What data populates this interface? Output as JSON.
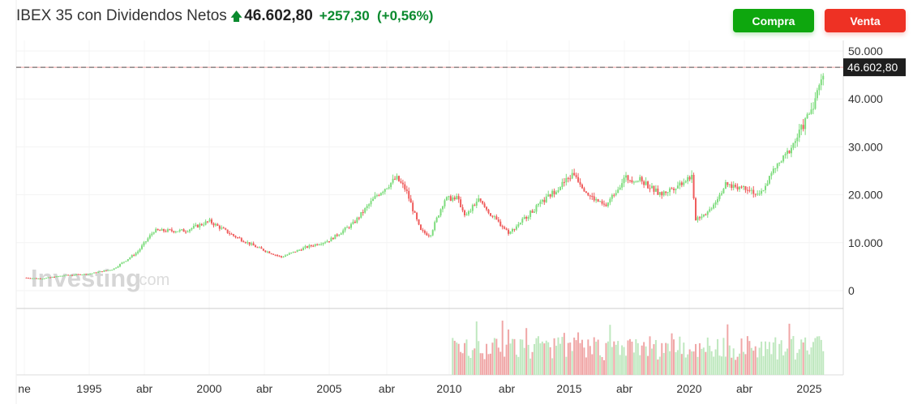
{
  "header": {
    "name": "IBEX 35 con Dividendos Netos",
    "arrow_icon": "up-arrow-icon",
    "price": "46.602,80",
    "change": "+257,30",
    "change_pct": "(+0,56%)"
  },
  "buttons": {
    "buy": "Compra",
    "sell": "Venta"
  },
  "colors": {
    "up": "#7ddc7d",
    "down": "#ef5b5b",
    "buy": "#0ea70e",
    "sell": "#ee3124"
  },
  "watermark": {
    "brand": "Investing",
    "suffix": ".com"
  },
  "chart_data": {
    "type": "candlestick",
    "title": "IBEX 35 con Dividendos Netos",
    "last_price_label": "46.602,80",
    "last_price": 46602.8,
    "ylim": [
      0,
      50000
    ],
    "y_ticks": [
      {
        "v": 0,
        "label": "0"
      },
      {
        "v": 10000,
        "label": "10.000"
      },
      {
        "v": 20000,
        "label": "20.000"
      },
      {
        "v": 30000,
        "label": "30.000"
      },
      {
        "v": 40000,
        "label": "40.000"
      },
      {
        "v": 50000,
        "label": "50.000"
      }
    ],
    "x_ticks": [
      {
        "t": 1992.3,
        "label": "ne"
      },
      {
        "t": 1995,
        "label": "1995"
      },
      {
        "t": 1997.3,
        "label": "abr"
      },
      {
        "t": 2000,
        "label": "2000"
      },
      {
        "t": 2002.3,
        "label": "abr"
      },
      {
        "t": 2005,
        "label": "2005"
      },
      {
        "t": 2007.4,
        "label": "abr"
      },
      {
        "t": 2010,
        "label": "2010"
      },
      {
        "t": 2012.4,
        "label": "abr"
      },
      {
        "t": 2015,
        "label": "2015"
      },
      {
        "t": 2017.3,
        "label": "abr"
      },
      {
        "t": 2020,
        "label": "2020"
      },
      {
        "t": 2022.3,
        "label": "abr"
      },
      {
        "t": 2025,
        "label": "2025"
      }
    ],
    "anchors": [
      [
        1992.3,
        2700
      ],
      [
        1993,
        2500
      ],
      [
        1994,
        3200
      ],
      [
        1995,
        3500
      ],
      [
        1996,
        4500
      ],
      [
        1997,
        8000
      ],
      [
        1997.7,
        12500
      ],
      [
        1999,
        12500
      ],
      [
        2000,
        14500
      ],
      [
        2001,
        11500
      ],
      [
        2002,
        9000
      ],
      [
        2003,
        7000
      ],
      [
        2004,
        9000
      ],
      [
        2005,
        10500
      ],
      [
        2006,
        14000
      ],
      [
        2007,
        20000
      ],
      [
        2007.8,
        23500
      ],
      [
        2008.2,
        21000
      ],
      [
        2008.8,
        12500
      ],
      [
        2009.2,
        11500
      ],
      [
        2009.8,
        19000
      ],
      [
        2010.3,
        19500
      ],
      [
        2010.7,
        15500
      ],
      [
        2011.2,
        19000
      ],
      [
        2011.8,
        15500
      ],
      [
        2012.5,
        12000
      ],
      [
        2013,
        14500
      ],
      [
        2014,
        19000
      ],
      [
        2015.2,
        24500
      ],
      [
        2015.8,
        20000
      ],
      [
        2016.5,
        17500
      ],
      [
        2017.3,
        23500
      ],
      [
        2018,
        23000
      ],
      [
        2018.8,
        20000
      ],
      [
        2019.5,
        22000
      ],
      [
        2020.1,
        24000
      ],
      [
        2020.25,
        15000
      ],
      [
        2020.8,
        16500
      ],
      [
        2021.5,
        22000
      ],
      [
        2022.5,
        21500
      ],
      [
        2022.9,
        19500
      ],
      [
        2023.5,
        25000
      ],
      [
        2024,
        28000
      ],
      [
        2024.5,
        32000
      ],
      [
        2025,
        37000
      ],
      [
        2025.4,
        42000
      ],
      [
        2025.6,
        46600
      ]
    ],
    "volume_start": 2010
  }
}
